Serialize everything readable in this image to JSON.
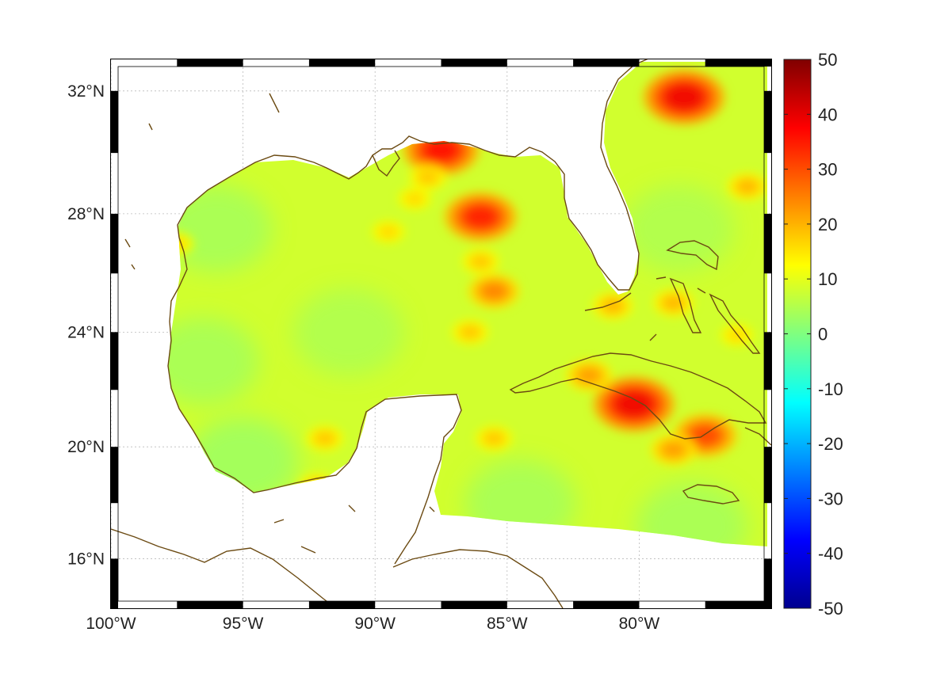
{
  "map": {
    "projection": "mercator",
    "lon_range": [
      -100,
      -75
    ],
    "lat_range": [
      14.2,
      33
    ],
    "grid": true,
    "frame": "black-white-checker",
    "coast_color": "#6b4a12",
    "background": "#ffffff"
  },
  "axes": {
    "x_ticks": [
      {
        "value": -100,
        "label": "100°W"
      },
      {
        "value": -95,
        "label": "95°W"
      },
      {
        "value": -90,
        "label": "90°W"
      },
      {
        "value": -85,
        "label": "85°W"
      },
      {
        "value": -80,
        "label": "80°W"
      }
    ],
    "y_ticks": [
      {
        "value": 32,
        "label": "32°N"
      },
      {
        "value": 28,
        "label": "28°N"
      },
      {
        "value": 24,
        "label": "24°N"
      },
      {
        "value": 20,
        "label": "20°N"
      },
      {
        "value": 16,
        "label": "16°N"
      }
    ]
  },
  "colorbar": {
    "colormap": "jet",
    "min": -50,
    "max": 50,
    "ticks": [
      "50",
      "40",
      "30",
      "20",
      "10",
      "0",
      "-10",
      "-20",
      "-30",
      "-40",
      "-50"
    ],
    "tick_values": [
      50,
      40,
      30,
      20,
      10,
      0,
      -10,
      -20,
      -30,
      -40,
      -50
    ]
  },
  "field": {
    "background_value": 8,
    "hotspots": [
      {
        "name": "georgia-carolina-coast",
        "lon": -78.3,
        "lat": 31.8,
        "value": 45
      },
      {
        "name": "mobile-bay",
        "lon": -87.5,
        "lat": 30.1,
        "value": 42
      },
      {
        "name": "mid-gulf-streak",
        "lon": -86.0,
        "lat": 27.9,
        "value": 40
      },
      {
        "name": "central-cuba",
        "lon": -80.2,
        "lat": 21.5,
        "value": 45
      },
      {
        "name": "southeast-cuba",
        "lon": -77.5,
        "lat": 20.4,
        "value": 35
      },
      {
        "name": "cuba-south-coast",
        "lon": -78.7,
        "lat": 19.9,
        "value": 25
      },
      {
        "name": "northwest-cuba",
        "lon": -81.9,
        "lat": 22.5,
        "value": 25
      },
      {
        "name": "bahamas-bank",
        "lon": -78.7,
        "lat": 25.0,
        "value": 22
      },
      {
        "name": "florida-keys",
        "lon": -81.0,
        "lat": 24.9,
        "value": 22
      },
      {
        "name": "bay-of-campeche",
        "lon": -91.9,
        "lat": 20.3,
        "value": 20
      },
      {
        "name": "tabasco-coast",
        "lon": -92.2,
        "lat": 18.6,
        "value": 20
      },
      {
        "name": "texas-corpus-christi",
        "lon": -97.5,
        "lat": 27.0,
        "value": 18
      },
      {
        "name": "florida-panhandle-west",
        "lon": -88.0,
        "lat": 29.2,
        "value": 20
      },
      {
        "name": "mid-gulf-patch",
        "lon": -86.0,
        "lat": 26.4,
        "value": 20
      },
      {
        "name": "mid-gulf-dot",
        "lon": -85.5,
        "lat": 25.4,
        "value": 28
      },
      {
        "name": "mid-gulf-small",
        "lon": -86.4,
        "lat": 24.0,
        "value": 20
      },
      {
        "name": "yucatan-channel",
        "lon": -85.5,
        "lat": 20.3,
        "value": 20
      },
      {
        "name": "atlantic-small",
        "lon": -75.9,
        "lat": 28.9,
        "value": 22
      },
      {
        "name": "bahamas-south",
        "lon": -76.3,
        "lat": 23.9,
        "value": 18
      },
      {
        "name": "louisiana-plume",
        "lon": -88.5,
        "lat": 28.5,
        "value": 18
      },
      {
        "name": "north-gulf-dot",
        "lon": -89.5,
        "lat": 27.4,
        "value": 18
      }
    ],
    "cool_zones": [
      {
        "name": "texas-shelf",
        "lon": -96.0,
        "lat": 27.5,
        "value": 3
      },
      {
        "name": "western-gulf",
        "lon": -96.5,
        "lat": 23.0,
        "value": 3
      },
      {
        "name": "southwest-gulf",
        "lon": -95.0,
        "lat": 19.5,
        "value": 2
      },
      {
        "name": "central-gulf",
        "lon": -91.0,
        "lat": 24.0,
        "value": 4
      },
      {
        "name": "caribbean-west",
        "lon": -84.5,
        "lat": 18.0,
        "value": 3
      },
      {
        "name": "caribbean-east",
        "lon": -78.0,
        "lat": 17.2,
        "value": 3
      },
      {
        "name": "atlantic-shelf",
        "lon": -78.5,
        "lat": 27.5,
        "value": 4
      }
    ]
  }
}
